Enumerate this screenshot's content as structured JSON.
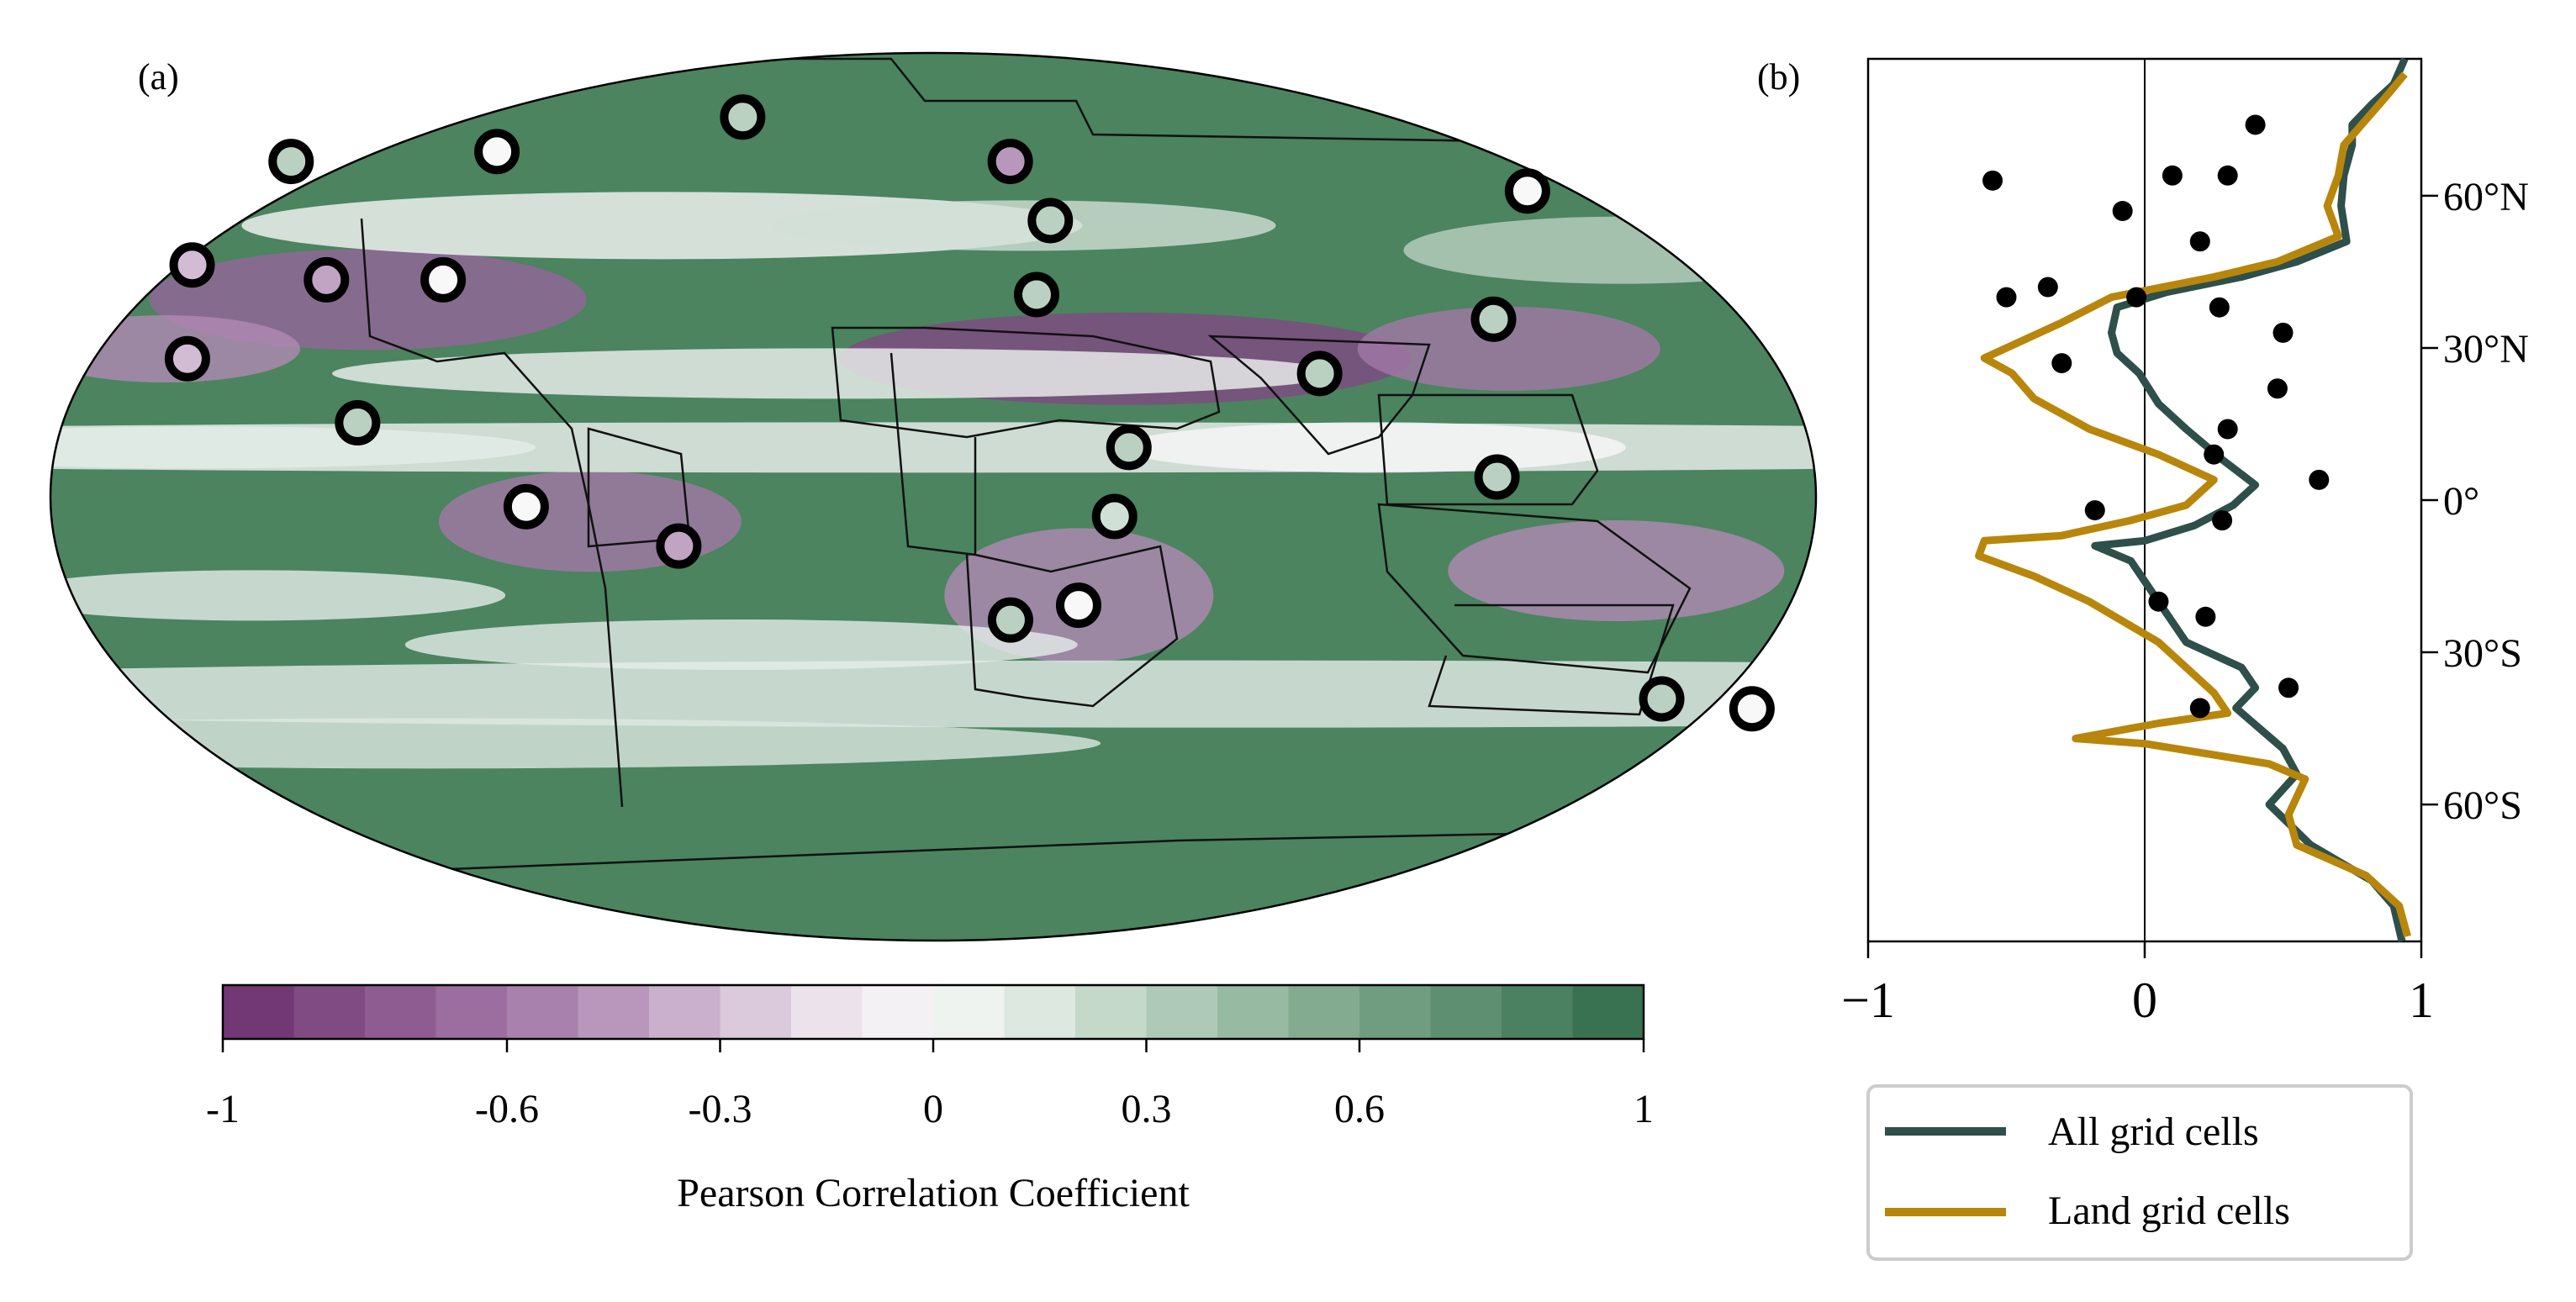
{
  "panels": {
    "a_label": "(a)",
    "b_label": "(b)"
  },
  "colors": {
    "purple_dark": "#6b2e6e",
    "green_dark": "#2f6b48",
    "line_all": "#2f4f4a",
    "line_land": "#b8860b",
    "region_border": "#111111"
  },
  "chart_data": [
    {
      "type": "heatmap",
      "panel": "(a)",
      "description_kind": "map",
      "colorbar": {
        "label": "Pearson Correlation Coefficient",
        "range": [
          -1,
          1
        ],
        "levels": 20,
        "tick_values": [
          -1,
          -0.6,
          -0.3,
          0,
          0.3,
          0.6,
          1
        ],
        "tick_labels": [
          "-1",
          "-0.6",
          "-0.3",
          "0",
          "0.3",
          "0.6",
          "1"
        ]
      },
      "region_markers": [
        {
          "lon": -150,
          "lat": 68,
          "value": 0.3
        },
        {
          "lon": -103,
          "lat": 70,
          "value": 0.0
        },
        {
          "lon": -47,
          "lat": 77,
          "value": 0.3
        },
        {
          "lon": 18,
          "lat": 68,
          "value": -0.45
        },
        {
          "lon": 26,
          "lat": 56,
          "value": 0.3
        },
        {
          "lon": 22,
          "lat": 41,
          "value": 0.3
        },
        {
          "lon": 135,
          "lat": 62,
          "value": 0.0
        },
        {
          "lon": 118,
          "lat": 36,
          "value": 0.3
        },
        {
          "lon": -160,
          "lat": 47,
          "value": -0.3
        },
        {
          "lon": -130,
          "lat": 44,
          "value": -0.4
        },
        {
          "lon": -105,
          "lat": 44,
          "value": 0.0
        },
        {
          "lon": -155,
          "lat": 28,
          "value": -0.3
        },
        {
          "lon": -118,
          "lat": 15,
          "value": 0.3
        },
        {
          "lon": -83,
          "lat": -2,
          "value": 0.0
        },
        {
          "lon": -52,
          "lat": -10,
          "value": -0.4
        },
        {
          "lon": 80,
          "lat": 25,
          "value": 0.3
        },
        {
          "lon": 40,
          "lat": 10,
          "value": 0.3
        },
        {
          "lon": 37,
          "lat": -4,
          "value": 0.2
        },
        {
          "lon": 30,
          "lat": -22,
          "value": 0.0
        },
        {
          "lon": 16,
          "lat": -25,
          "value": 0.3
        },
        {
          "lon": 115,
          "lat": 4,
          "value": 0.3
        },
        {
          "lon": 155,
          "lat": -41,
          "value": 0.3
        },
        {
          "lon": 175,
          "lat": -43,
          "value": 0.0
        }
      ]
    },
    {
      "type": "line",
      "panel": "(b)",
      "xlim": [
        -1,
        1
      ],
      "ylim": [
        -87,
        87
      ],
      "x_ticks": [
        -1,
        0,
        1
      ],
      "x_tick_labels": [
        "−1",
        "0",
        "1"
      ],
      "y_ticks": [
        60,
        30,
        0,
        -30,
        -60
      ],
      "y_tick_labels": [
        "60°N",
        "30°N",
        "0°",
        "30°S",
        "60°S"
      ],
      "legend": {
        "position": "below"
      },
      "series": [
        {
          "name": "All grid cells",
          "color": "#2f4f4a",
          "points": [
            [
              0.94,
              87
            ],
            [
              0.9,
              82
            ],
            [
              0.82,
              78
            ],
            [
              0.75,
              74
            ],
            [
              0.75,
              70
            ],
            [
              0.72,
              64
            ],
            [
              0.71,
              58
            ],
            [
              0.73,
              51
            ],
            [
              0.55,
              47
            ],
            [
              0.35,
              44
            ],
            [
              0.08,
              41
            ],
            [
              -0.1,
              38
            ],
            [
              -0.12,
              33
            ],
            [
              -0.1,
              29
            ],
            [
              -0.02,
              25
            ],
            [
              0.05,
              19
            ],
            [
              0.15,
              14
            ],
            [
              0.28,
              8
            ],
            [
              0.4,
              3
            ],
            [
              0.32,
              -1
            ],
            [
              0.18,
              -5
            ],
            [
              0.0,
              -8
            ],
            [
              -0.18,
              -9
            ],
            [
              -0.05,
              -12
            ],
            [
              0.05,
              -20
            ],
            [
              0.15,
              -28
            ],
            [
              0.35,
              -33
            ],
            [
              0.4,
              -37
            ],
            [
              0.33,
              -41
            ],
            [
              0.5,
              -49
            ],
            [
              0.55,
              -54
            ],
            [
              0.45,
              -60
            ],
            [
              0.6,
              -68
            ],
            [
              0.82,
              -75
            ],
            [
              0.9,
              -80
            ],
            [
              0.93,
              -87
            ]
          ]
        },
        {
          "name": "Land grid cells",
          "color": "#b8860b",
          "points": [
            [
              0.94,
              84
            ],
            [
              0.88,
              80
            ],
            [
              0.8,
              75
            ],
            [
              0.72,
              70
            ],
            [
              0.7,
              64
            ],
            [
              0.66,
              58
            ],
            [
              0.7,
              52
            ],
            [
              0.48,
              47
            ],
            [
              0.25,
              44
            ],
            [
              -0.12,
              40
            ],
            [
              -0.3,
              35
            ],
            [
              -0.5,
              30
            ],
            [
              -0.58,
              28
            ],
            [
              -0.48,
              25
            ],
            [
              -0.4,
              20
            ],
            [
              -0.2,
              14
            ],
            [
              0.05,
              9
            ],
            [
              0.25,
              4
            ],
            [
              0.15,
              -1
            ],
            [
              -0.05,
              -4
            ],
            [
              -0.3,
              -7
            ],
            [
              -0.58,
              -8
            ],
            [
              -0.6,
              -11
            ],
            [
              -0.4,
              -15
            ],
            [
              -0.2,
              -20
            ],
            [
              0.05,
              -28
            ],
            [
              0.25,
              -38
            ],
            [
              0.3,
              -42
            ],
            [
              0.05,
              -44
            ],
            [
              -0.25,
              -47
            ],
            [
              0.0,
              -48
            ],
            [
              0.45,
              -52
            ],
            [
              0.58,
              -55
            ],
            [
              0.52,
              -62
            ],
            [
              0.55,
              -68
            ],
            [
              0.8,
              -74
            ],
            [
              0.92,
              -80
            ],
            [
              0.95,
              -86
            ]
          ]
        },
        {
          "name": "",
          "type": "scatter",
          "color": "#000000",
          "points": [
            [
              0.4,
              74
            ],
            [
              -0.55,
              63
            ],
            [
              0.1,
              64
            ],
            [
              0.3,
              64
            ],
            [
              -0.08,
              57
            ],
            [
              0.2,
              51
            ],
            [
              -0.35,
              42
            ],
            [
              -0.5,
              40
            ],
            [
              -0.03,
              40
            ],
            [
              0.27,
              38
            ],
            [
              0.5,
              33
            ],
            [
              -0.3,
              27
            ],
            [
              0.48,
              22
            ],
            [
              0.3,
              14
            ],
            [
              0.25,
              9
            ],
            [
              0.63,
              4
            ],
            [
              -0.18,
              -2
            ],
            [
              0.28,
              -4
            ],
            [
              0.05,
              -20
            ],
            [
              0.22,
              -23
            ],
            [
              0.52,
              -37
            ],
            [
              0.2,
              -41
            ]
          ]
        }
      ]
    }
  ],
  "legend_labels": [
    "All grid cells",
    "Land grid cells"
  ]
}
